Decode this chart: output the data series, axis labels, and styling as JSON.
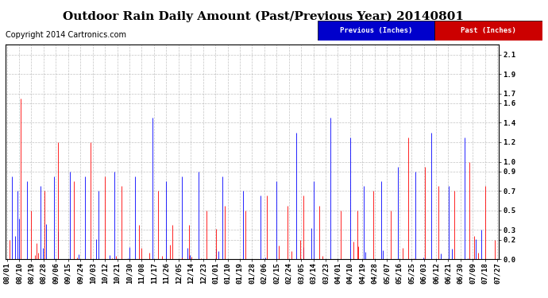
{
  "title": "Outdoor Rain Daily Amount (Past/Previous Year) 20140801",
  "copyright": "Copyright 2014 Cartronics.com",
  "legend_previous": "Previous (Inches)",
  "legend_past": "Past (Inches)",
  "bar_color_previous": "#0000FF",
  "bar_color_past": "#FF0000",
  "legend_prev_bg": "#0000CC",
  "legend_past_bg": "#CC0000",
  "ylim": [
    0.0,
    2.2
  ],
  "yticks": [
    0.0,
    0.2,
    0.3,
    0.5,
    0.7,
    0.9,
    1.0,
    1.2,
    1.4,
    1.6,
    1.7,
    1.9,
    2.1
  ],
  "background_color": "#ffffff",
  "grid_color": "#aaaaaa",
  "title_fontsize": 11,
  "tick_fontsize": 6.5,
  "copyright_fontsize": 7,
  "x_labels": [
    "08/01",
    "08/10",
    "08/19",
    "08/28",
    "09/06",
    "09/15",
    "09/24",
    "10/03",
    "10/12",
    "10/21",
    "10/30",
    "11/08",
    "11/17",
    "11/26",
    "12/05",
    "12/14",
    "12/23",
    "01/01",
    "01/10",
    "01/19",
    "01/28",
    "02/06",
    "02/15",
    "02/24",
    "03/05",
    "03/14",
    "03/23",
    "04/01",
    "04/10",
    "04/19",
    "04/28",
    "05/07",
    "05/16",
    "05/25",
    "06/03",
    "06/12",
    "06/21",
    "06/30",
    "07/09",
    "07/18",
    "07/27"
  ],
  "n_days": 365,
  "prev_spikes_pos": [
    4,
    8,
    15,
    25,
    35,
    47,
    58,
    68,
    80,
    95,
    108,
    118,
    130,
    142,
    160,
    175,
    188,
    200,
    215,
    228,
    240,
    255,
    265,
    278,
    290,
    303,
    315,
    328,
    340,
    352
  ],
  "prev_spikes_h": [
    0.85,
    0.7,
    0.8,
    0.75,
    0.85,
    0.9,
    0.85,
    0.7,
    0.9,
    0.85,
    1.45,
    0.8,
    0.85,
    0.9,
    0.85,
    0.7,
    0.65,
    0.8,
    1.3,
    0.8,
    1.45,
    1.25,
    0.75,
    0.8,
    0.95,
    0.9,
    1.3,
    0.75,
    1.25,
    0.3
  ],
  "past_spikes_pos": [
    2,
    10,
    18,
    28,
    38,
    50,
    62,
    73,
    85,
    98,
    112,
    123,
    135,
    148,
    162,
    177,
    193,
    208,
    220,
    232,
    248,
    260,
    272,
    285,
    298,
    310,
    320,
    332,
    343,
    355,
    362
  ],
  "past_spikes_h": [
    0.2,
    1.65,
    0.5,
    0.7,
    1.2,
    0.8,
    1.2,
    0.85,
    0.75,
    0.35,
    0.7,
    0.35,
    0.35,
    0.5,
    0.55,
    0.5,
    0.65,
    0.55,
    0.65,
    0.55,
    0.5,
    0.5,
    0.7,
    0.5,
    1.25,
    0.95,
    0.75,
    0.7,
    1.0,
    0.75,
    0.2
  ]
}
